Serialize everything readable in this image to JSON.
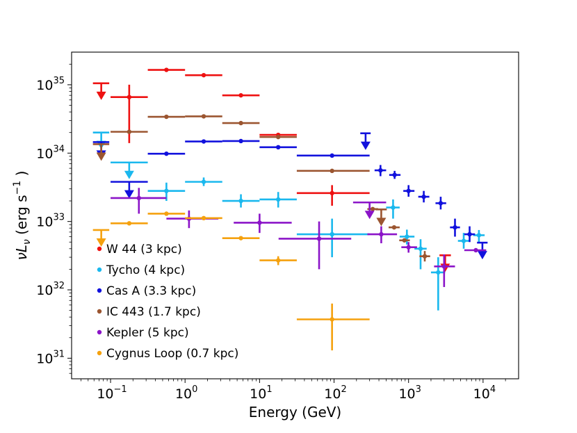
{
  "chart_data": {
    "type": "scatter",
    "title": "",
    "xlabel": "Energy (GeV)",
    "ylabel": "νL_ν (erg s^-1)",
    "xscale": "log",
    "yscale": "log",
    "xlim": [
      0.03,
      30000
    ],
    "ylim": [
      5e+30,
      3e+35
    ],
    "x_ticks": [
      {
        "value": 0.1,
        "base": "10",
        "exp": "−1"
      },
      {
        "value": 1,
        "base": "10",
        "exp": "0"
      },
      {
        "value": 10,
        "base": "10",
        "exp": "1"
      },
      {
        "value": 100,
        "base": "10",
        "exp": "2"
      },
      {
        "value": 1000,
        "base": "10",
        "exp": "3"
      },
      {
        "value": 10000,
        "base": "10",
        "exp": "4"
      }
    ],
    "y_ticks": [
      {
        "value": 1e+31,
        "base": "10",
        "exp": "31"
      },
      {
        "value": 1e+32,
        "base": "10",
        "exp": "32"
      },
      {
        "value": 1e+33,
        "base": "10",
        "exp": "33"
      },
      {
        "value": 1e+34,
        "base": "10",
        "exp": "34"
      },
      {
        "value": 1e+35,
        "base": "10",
        "exp": "35"
      }
    ],
    "legend_position": "lower-left",
    "series": [
      {
        "name": "W 44  (3 kpc)",
        "color": "#ee1111",
        "points": [
          {
            "x": 0.178,
            "y": 6.6e+34,
            "xlo": 0.1,
            "xhi": 0.316,
            "ylo": 1.4e+34,
            "yhi": 1e+35
          },
          {
            "x": 0.562,
            "y": 1.65e+35,
            "xlo": 0.316,
            "xhi": 1.0
          },
          {
            "x": 1.78,
            "y": 1.38e+35,
            "xlo": 1.0,
            "xhi": 3.16
          },
          {
            "x": 5.62,
            "y": 7e+34,
            "xlo": 3.16,
            "xhi": 10
          },
          {
            "x": 17.8,
            "y": 1.85e+34,
            "xlo": 10,
            "xhi": 31.6
          },
          {
            "x": 94,
            "y": 2.6e+33,
            "xlo": 31.6,
            "xhi": 300,
            "ylo": 1.7e+33,
            "yhi": 3.4e+33
          }
        ],
        "upper_limits": [
          {
            "x": 0.075,
            "y": 1.05e+35,
            "xlo": 0.058,
            "xhi": 0.096
          },
          {
            "x": 3100,
            "y": 3.2e+32,
            "xlo": 2600,
            "xhi": 3700
          }
        ]
      },
      {
        "name": "Tycho  (4 kpc)",
        "color": "#1ab8ee",
        "points": [
          {
            "x": 0.562,
            "y": 2.8e+33,
            "xlo": 0.316,
            "xhi": 1.0,
            "ylo": 2e+33,
            "yhi": 3.7e+33
          },
          {
            "x": 1.78,
            "y": 3.8e+33,
            "xlo": 1.0,
            "xhi": 3.16,
            "ylo": 3.3e+33,
            "yhi": 4.4e+33
          },
          {
            "x": 5.62,
            "y": 2e+33,
            "xlo": 3.16,
            "xhi": 10,
            "ylo": 1.6e+33,
            "yhi": 2.5e+33
          },
          {
            "x": 17.8,
            "y": 2.1e+33,
            "xlo": 10,
            "xhi": 31.6,
            "ylo": 1.6e+33,
            "yhi": 2.7e+33
          },
          {
            "x": 94,
            "y": 6.5e+32,
            "xlo": 31.6,
            "xhi": 300,
            "ylo": 3e+32,
            "yhi": 1.1e+33
          },
          {
            "x": 620,
            "y": 1.6e+33,
            "xlo": 500,
            "xhi": 760,
            "ylo": 1.1e+33,
            "yhi": 2.1e+33
          },
          {
            "x": 950,
            "y": 6e+32,
            "xlo": 760,
            "xhi": 1200,
            "ylo": 4.6e+32,
            "yhi": 7.6e+32
          },
          {
            "x": 1450,
            "y": 4e+32,
            "xlo": 1200,
            "xhi": 1750,
            "ylo": 2e+32,
            "yhi": 5.5e+32
          },
          {
            "x": 2500,
            "y": 1.8e+32,
            "xlo": 2000,
            "xhi": 3100,
            "ylo": 5e+31,
            "yhi": 3e+32
          },
          {
            "x": 5500,
            "y": 5.2e+32,
            "xlo": 4600,
            "xhi": 6600,
            "ylo": 4e+32,
            "yhi": 6.8e+32
          },
          {
            "x": 8800,
            "y": 6.3e+32,
            "xlo": 7400,
            "xhi": 10500,
            "ylo": 5e+32,
            "yhi": 7.5e+32
          }
        ],
        "upper_limits": [
          {
            "x": 0.075,
            "y": 2e+34,
            "xlo": 0.058,
            "xhi": 0.096
          },
          {
            "x": 0.178,
            "y": 7.3e+33,
            "xlo": 0.1,
            "xhi": 0.316
          }
        ]
      },
      {
        "name": "Cas A  (3.3 kpc)",
        "color": "#1111dd",
        "points": [
          {
            "x": 0.562,
            "y": 9.8e+33,
            "xlo": 0.316,
            "xhi": 1.0
          },
          {
            "x": 1.78,
            "y": 1.48e+34,
            "xlo": 1.0,
            "xhi": 3.16
          },
          {
            "x": 5.62,
            "y": 1.5e+34,
            "xlo": 3.16,
            "xhi": 10
          },
          {
            "x": 17.8,
            "y": 1.22e+34,
            "xlo": 10,
            "xhi": 31.6
          },
          {
            "x": 94,
            "y": 9.2e+33,
            "xlo": 31.6,
            "xhi": 300
          },
          {
            "x": 420,
            "y": 5.6e+33,
            "xlo": 350,
            "xhi": 500,
            "ylo": 4.6e+33,
            "yhi": 6.7e+33
          },
          {
            "x": 650,
            "y": 4.8e+33,
            "xlo": 550,
            "xhi": 780,
            "ylo": 4.2e+33,
            "yhi": 5.5e+33
          },
          {
            "x": 1000,
            "y": 2.8e+33,
            "xlo": 850,
            "xhi": 1200,
            "ylo": 2.3e+33,
            "yhi": 3.4e+33
          },
          {
            "x": 1600,
            "y": 2.3e+33,
            "xlo": 1350,
            "xhi": 1900,
            "ylo": 1.9e+33,
            "yhi": 2.8e+33
          },
          {
            "x": 2700,
            "y": 1.85e+33,
            "xlo": 2300,
            "xhi": 3200,
            "ylo": 1.5e+33,
            "yhi": 2.3e+33
          },
          {
            "x": 4200,
            "y": 8.2e+32,
            "xlo": 3600,
            "xhi": 4900,
            "ylo": 6e+32,
            "yhi": 1.1e+33
          },
          {
            "x": 6600,
            "y": 6.5e+32,
            "xlo": 5600,
            "xhi": 7800,
            "ylo": 5e+32,
            "yhi": 8.5e+32
          }
        ],
        "upper_limits": [
          {
            "x": 0.075,
            "y": 1.45e+34,
            "xlo": 0.058,
            "xhi": 0.096
          },
          {
            "x": 0.178,
            "y": 3.8e+33,
            "xlo": 0.1,
            "xhi": 0.316
          },
          {
            "x": 265,
            "y": 1.95e+34,
            "xlo": 225,
            "xhi": 310
          },
          {
            "x": 9800,
            "y": 4.9e+32,
            "xlo": 8300,
            "xhi": 11500
          }
        ]
      },
      {
        "name": "IC 443  (1.7 kpc)",
        "color": "#9b5530",
        "points": [
          {
            "x": 0.178,
            "y": 2.05e+34,
            "xlo": 0.1,
            "xhi": 0.316
          },
          {
            "x": 0.562,
            "y": 3.4e+34,
            "xlo": 0.316,
            "xhi": 1.0
          },
          {
            "x": 1.78,
            "y": 3.45e+34,
            "xlo": 1.0,
            "xhi": 3.16
          },
          {
            "x": 5.62,
            "y": 2.75e+34,
            "xlo": 3.16,
            "xhi": 10
          },
          {
            "x": 17.8,
            "y": 1.72e+34,
            "xlo": 10,
            "xhi": 31.6
          },
          {
            "x": 94,
            "y": 5.5e+33,
            "xlo": 31.6,
            "xhi": 300
          },
          {
            "x": 330,
            "y": 1.52e+33,
            "xlo": 280,
            "xhi": 390
          },
          {
            "x": 640,
            "y": 8.2e+32,
            "xlo": 540,
            "xhi": 760
          },
          {
            "x": 880,
            "y": 5.3e+32,
            "xlo": 750,
            "xhi": 1040
          },
          {
            "x": 1650,
            "y": 3.1e+32,
            "xlo": 1400,
            "xhi": 1950,
            "ylo": 2.6e+32,
            "yhi": 3.7e+32
          }
        ],
        "upper_limits": [
          {
            "x": 0.075,
            "y": 1.35e+34,
            "xlo": 0.058,
            "xhi": 0.096
          },
          {
            "x": 430,
            "y": 1.5e+33,
            "xlo": 360,
            "xhi": 510
          }
        ]
      },
      {
        "name": "Kepler  (5 kpc)",
        "color": "#8b14c8",
        "points": [
          {
            "x": 0.24,
            "y": 2.2e+33,
            "xlo": 0.1,
            "xhi": 0.562,
            "ylo": 1.3e+33,
            "yhi": 3.1e+33
          },
          {
            "x": 1.13,
            "y": 1.1e+33,
            "xlo": 0.562,
            "xhi": 2.8,
            "ylo": 8e+32,
            "yhi": 1.45e+33
          },
          {
            "x": 10,
            "y": 9.6e+32,
            "xlo": 4.5,
            "xhi": 27,
            "ylo": 6.8e+32,
            "yhi": 1.3e+33
          },
          {
            "x": 63,
            "y": 5.6e+32,
            "xlo": 18,
            "xhi": 170,
            "ylo": 2e+32,
            "yhi": 1e+33
          },
          {
            "x": 430,
            "y": 6.5e+32,
            "xlo": 280,
            "xhi": 700,
            "ylo": 4.8e+32,
            "yhi": 8.5e+32
          },
          {
            "x": 1000,
            "y": 4.2e+32,
            "xlo": 800,
            "xhi": 1300,
            "ylo": 3.5e+32,
            "yhi": 5e+32
          },
          {
            "x": 3000,
            "y": 2.2e+32,
            "xlo": 2200,
            "xhi": 4200,
            "ylo": 1.1e+32,
            "yhi": 3.3e+32
          },
          {
            "x": 8000,
            "y": 3.8e+32,
            "xlo": 5600,
            "xhi": 11000
          }
        ],
        "upper_limits": [
          {
            "x": 300,
            "y": 1.9e+33,
            "xlo": 180,
            "xhi": 500
          }
        ]
      },
      {
        "name": "Cygnus Loop  (0.7 kpc)",
        "color": "#f5a10e",
        "points": [
          {
            "x": 0.178,
            "y": 9.4e+32,
            "xlo": 0.1,
            "xhi": 0.316
          },
          {
            "x": 0.562,
            "y": 1.3e+33,
            "xlo": 0.316,
            "xhi": 1.0
          },
          {
            "x": 1.78,
            "y": 1.12e+33,
            "xlo": 1.0,
            "xhi": 3.16
          },
          {
            "x": 5.62,
            "y": 5.7e+32,
            "xlo": 3.16,
            "xhi": 10
          },
          {
            "x": 17.8,
            "y": 2.7e+32,
            "xlo": 10,
            "xhi": 31.6,
            "ylo": 2.3e+32,
            "yhi": 3.1e+32
          },
          {
            "x": 94,
            "y": 3.7e+31,
            "xlo": 31.6,
            "xhi": 300,
            "ylo": 1.3e+31,
            "yhi": 6.3e+31
          }
        ],
        "upper_limits": [
          {
            "x": 0.075,
            "y": 7.5e+32,
            "xlo": 0.058,
            "xhi": 0.096
          }
        ]
      }
    ]
  }
}
